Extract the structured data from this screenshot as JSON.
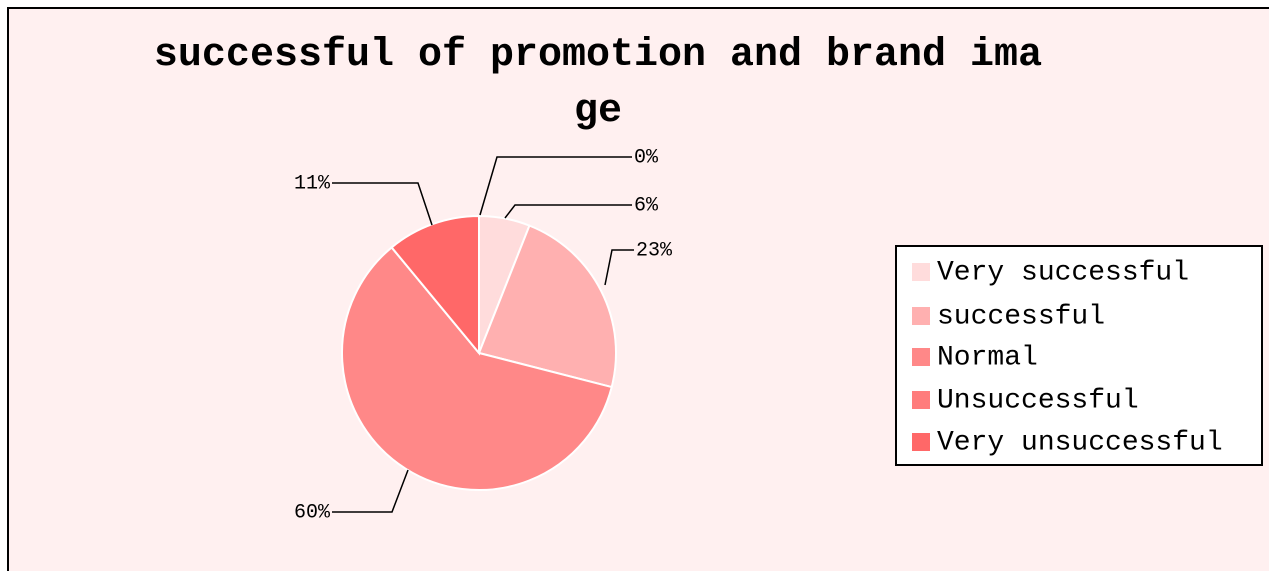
{
  "chart_data": {
    "type": "pie",
    "title": "successful of promotion and brand image",
    "categories": [
      "Very successful",
      "successful",
      "Normal",
      "Unsuccessful",
      "Very unsuccessful"
    ],
    "values": [
      6,
      23,
      60,
      0,
      11
    ],
    "value_labels": [
      "6%",
      "23%",
      "60%",
      "0%",
      "11%"
    ],
    "colors": [
      "#ffdcdc",
      "#ffb0b0",
      "#ff8888",
      "#ff7c7c",
      "#ff6868"
    ],
    "legend": "right"
  }
}
